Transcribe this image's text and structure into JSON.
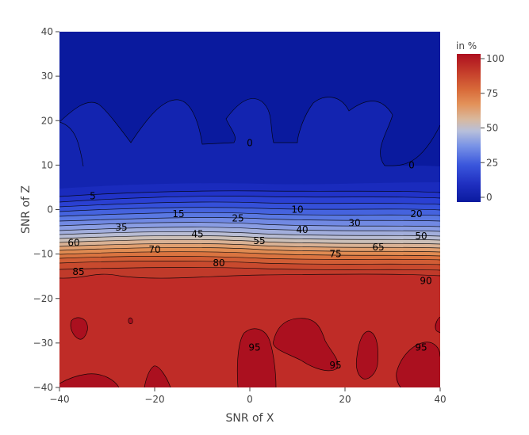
{
  "chart_data": {
    "type": "contour",
    "xlabel": "SNR of X",
    "ylabel": "SNR of Z",
    "xlim": [
      -40,
      40
    ],
    "ylim": [
      -40,
      40
    ],
    "xticks": [
      "−40",
      "−20",
      "0",
      "20",
      "40"
    ],
    "yticks": [
      "−40",
      "−30",
      "−20",
      "−10",
      "0",
      "10",
      "20",
      "30",
      "40"
    ],
    "colorbar": {
      "title": "in %",
      "ticks": [
        "0",
        "25",
        "50",
        "75",
        "100"
      ],
      "range": [
        0,
        100
      ],
      "colors": [
        "#0a1a9e",
        "#2a3fd0",
        "#5d7de8",
        "#9fb0e6",
        "#c9c6c2",
        "#dba27e",
        "#e07f45",
        "#d2582f",
        "#c02d25",
        "#ad0f1f"
      ]
    },
    "contour_levels": [
      0,
      5,
      10,
      15,
      20,
      25,
      30,
      35,
      40,
      45,
      50,
      55,
      60,
      65,
      70,
      75,
      80,
      85,
      90,
      95
    ],
    "contour_labels": [
      {
        "text": "0",
        "x": 0,
        "y": 15
      },
      {
        "text": "0",
        "x": 34,
        "y": 10
      },
      {
        "text": "5",
        "x": -33,
        "y": 3
      },
      {
        "text": "10",
        "x": 10,
        "y": 0
      },
      {
        "text": "15",
        "x": -15,
        "y": -1
      },
      {
        "text": "20",
        "x": 35,
        "y": -1
      },
      {
        "text": "25",
        "x": -2.5,
        "y": -2
      },
      {
        "text": "30",
        "x": 22,
        "y": -3
      },
      {
        "text": "35",
        "x": -27,
        "y": -4
      },
      {
        "text": "40",
        "x": 11,
        "y": -4.5
      },
      {
        "text": "45",
        "x": -11,
        "y": -5.5
      },
      {
        "text": "50",
        "x": 36,
        "y": -6
      },
      {
        "text": "55",
        "x": 2,
        "y": -7
      },
      {
        "text": "60",
        "x": -37,
        "y": -7.5
      },
      {
        "text": "65",
        "x": 27,
        "y": -8.5
      },
      {
        "text": "70",
        "x": -20,
        "y": -9
      },
      {
        "text": "75",
        "x": 18,
        "y": -10
      },
      {
        "text": "80",
        "x": -6.5,
        "y": -12
      },
      {
        "text": "85",
        "x": -36,
        "y": -14
      },
      {
        "text": "90",
        "x": 37,
        "y": -16
      },
      {
        "text": "95",
        "x": 1,
        "y": -31
      },
      {
        "text": "95",
        "x": 36,
        "y": -31
      },
      {
        "text": "95",
        "x": 18,
        "y": -35
      }
    ]
  }
}
